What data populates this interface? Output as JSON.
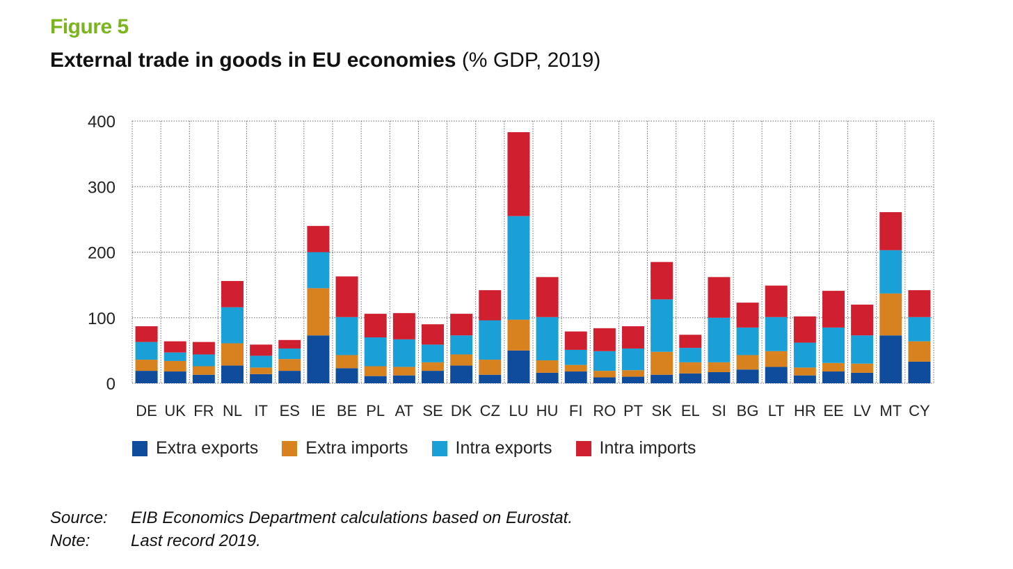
{
  "figure_label": "Figure 5",
  "title_main": "External trade in goods in EU economies",
  "title_unit": "(% GDP, 2019)",
  "source": {
    "label": "Source:",
    "text": "EIB Economics Department calculations based on Eurostat."
  },
  "note": {
    "label": "Note:",
    "text": "Last record 2019."
  },
  "colors": {
    "extra_exports": "#0f4c9c",
    "extra_imports": "#d8821f",
    "intra_exports": "#1a9fd6",
    "intra_imports": "#d01f2e",
    "title_green": "#7ab51d"
  },
  "chart_data": {
    "type": "bar",
    "stacked": true,
    "ylim": [
      0,
      400
    ],
    "yticks": [
      0,
      100,
      200,
      300,
      400
    ],
    "grid": true,
    "legend_position": "bottom-left",
    "categories": [
      "DE",
      "UK",
      "FR",
      "NL",
      "IT",
      "ES",
      "IE",
      "BE",
      "PL",
      "AT",
      "SE",
      "DK",
      "CZ",
      "LU",
      "HU",
      "FI",
      "RO",
      "PT",
      "SK",
      "EL",
      "SI",
      "BG",
      "LT",
      "HR",
      "EE",
      "LV",
      "MT",
      "CY"
    ],
    "series": [
      {
        "name": "Extra exports",
        "color": "#0f4c9c",
        "values": [
          19,
          18,
          13,
          27,
          14,
          19,
          73,
          23,
          11,
          12,
          19,
          27,
          13,
          50,
          16,
          18,
          9,
          10,
          13,
          15,
          17,
          21,
          25,
          12,
          18,
          16,
          73,
          33
        ]
      },
      {
        "name": "Extra imports",
        "color": "#d8821f",
        "values": [
          17,
          16,
          13,
          34,
          10,
          18,
          72,
          20,
          15,
          13,
          13,
          17,
          23,
          47,
          19,
          10,
          10,
          10,
          35,
          17,
          15,
          22,
          24,
          12,
          13,
          14,
          64,
          31
        ]
      },
      {
        "name": "Intra exports",
        "color": "#1a9fd6",
        "values": [
          27,
          13,
          18,
          55,
          18,
          16,
          55,
          58,
          44,
          42,
          27,
          29,
          60,
          158,
          66,
          23,
          30,
          33,
          80,
          22,
          68,
          42,
          52,
          38,
          54,
          43,
          66,
          37
        ]
      },
      {
        "name": "Intra imports",
        "color": "#d01f2e",
        "values": [
          24,
          17,
          19,
          40,
          17,
          13,
          40,
          62,
          36,
          40,
          31,
          33,
          46,
          128,
          61,
          28,
          35,
          34,
          57,
          20,
          62,
          38,
          48,
          40,
          56,
          47,
          58,
          41
        ]
      }
    ]
  }
}
